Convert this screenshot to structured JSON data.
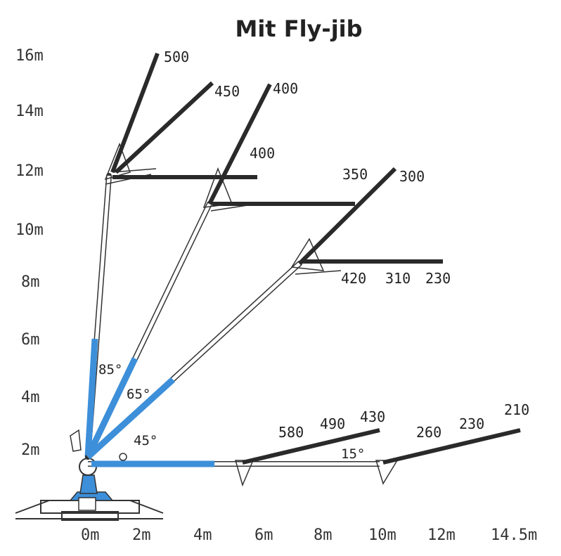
{
  "title": "Mit Fly-jib",
  "colors": {
    "boom_highlight": "#3d8fd9",
    "boom_outline": "#333333",
    "jib": "#2a2a2a",
    "text": "#222222"
  },
  "y_axis": {
    "unit": "m",
    "ticks": [
      "16m",
      "14m",
      "12m",
      "10m",
      "8m",
      "6m",
      "4m",
      "2m"
    ]
  },
  "x_axis": {
    "unit": "m",
    "ticks": [
      "0m",
      "2m",
      "4m",
      "6m",
      "8m",
      "10m",
      "12m",
      "14.5m"
    ]
  },
  "boom_angles": [
    "85°",
    "65°",
    "45°"
  ],
  "jib_angle": "15°",
  "load_labels": {
    "boom85_steep": "500",
    "boom85_mid": "450",
    "boom65_tip": "400",
    "boom65_jib": "400",
    "boom45_jib_tip": "300",
    "boom45_jib_mid": "350",
    "boom45_horiz": [
      "420",
      "310",
      "230"
    ],
    "horiz_short": [
      "580",
      "490",
      "430"
    ],
    "horiz_long": [
      "260",
      "230",
      "210"
    ]
  }
}
